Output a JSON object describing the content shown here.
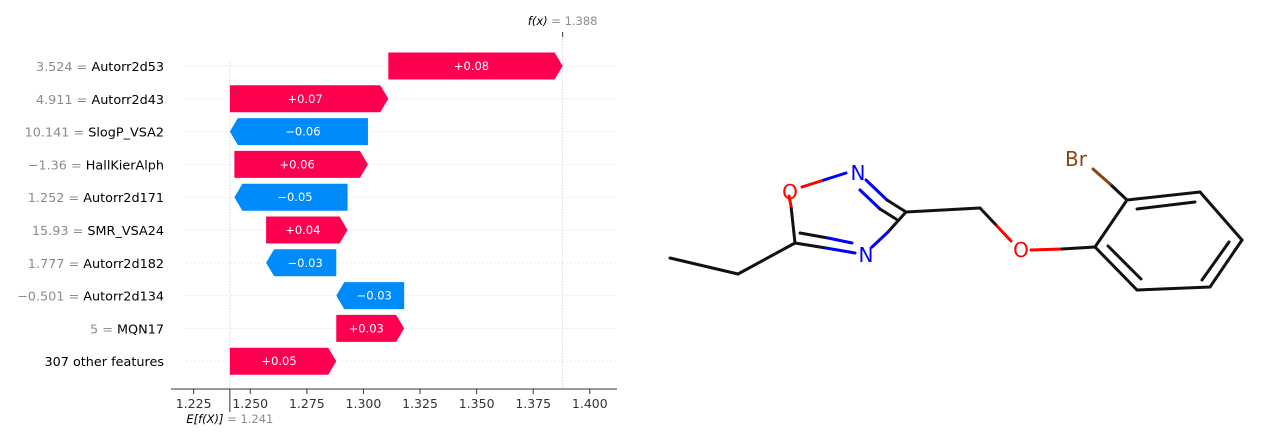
{
  "chart_data": {
    "type": "waterfall",
    "base_value": 1.241,
    "output_value": 1.388,
    "base_label": {
      "func": "E[f(X)]",
      "eq": " = ",
      "value": "1.241"
    },
    "output_label": {
      "func": "f(x)",
      "eq": " = ",
      "value": "1.388"
    },
    "xlim": [
      1.215,
      1.412
    ],
    "xticks": [
      1.225,
      1.25,
      1.275,
      1.3,
      1.325,
      1.35,
      1.375,
      1.4
    ],
    "xtick_labels": [
      "1.225",
      "1.250",
      "1.275",
      "1.300",
      "1.325",
      "1.350",
      "1.375",
      "1.400"
    ],
    "colors": {
      "positive": "#ff0051",
      "negative": "#008bfb",
      "value_text": "#8c8c8c",
      "grid": "#cccccc"
    },
    "features": [
      {
        "value": "3.524",
        "name": "Autorr2d53",
        "start": 1.311,
        "end": 1.388,
        "contribution": "+0.08",
        "sign": 1
      },
      {
        "value": "4.911",
        "name": "Autorr2d43",
        "start": 1.241,
        "end": 1.311,
        "contribution": "+0.07",
        "sign": 1
      },
      {
        "value": "10.141",
        "name": "SlogP_VSA2",
        "start": 1.302,
        "end": 1.241,
        "contribution": "−0.06",
        "sign": -1
      },
      {
        "value": "−1.36",
        "name": "HallKierAlph",
        "start": 1.243,
        "end": 1.302,
        "contribution": "+0.06",
        "sign": 1
      },
      {
        "value": "1.252",
        "name": "Autorr2d171",
        "start": 1.293,
        "end": 1.243,
        "contribution": "−0.05",
        "sign": -1
      },
      {
        "value": "15.93",
        "name": "SMR_VSA24",
        "start": 1.257,
        "end": 1.293,
        "contribution": "+0.04",
        "sign": 1
      },
      {
        "value": "1.777",
        "name": "Autorr2d182",
        "start": 1.288,
        "end": 1.257,
        "contribution": "−0.03",
        "sign": -1
      },
      {
        "value": "−0.501",
        "name": "Autorr2d134",
        "start": 1.318,
        "end": 1.288,
        "contribution": "−0.03",
        "sign": -1
      },
      {
        "value": "5",
        "name": "MQN17",
        "start": 1.288,
        "end": 1.318,
        "contribution": "+0.03",
        "sign": 1
      },
      {
        "value": "",
        "name": "307 other features",
        "start": 1.241,
        "end": 1.288,
        "contribution": "+0.05",
        "sign": 1
      }
    ]
  },
  "molecule": {
    "atom_labels": [
      {
        "id": "O1",
        "text": "O",
        "color": "#ff0000"
      },
      {
        "id": "N2",
        "text": "N",
        "color": "#0000ff"
      },
      {
        "id": "N4",
        "text": "N",
        "color": "#0000ff"
      },
      {
        "id": "O6",
        "text": "O",
        "color": "#ff0000"
      },
      {
        "id": "Br",
        "text": "Br",
        "color": "#8b4513"
      }
    ]
  }
}
